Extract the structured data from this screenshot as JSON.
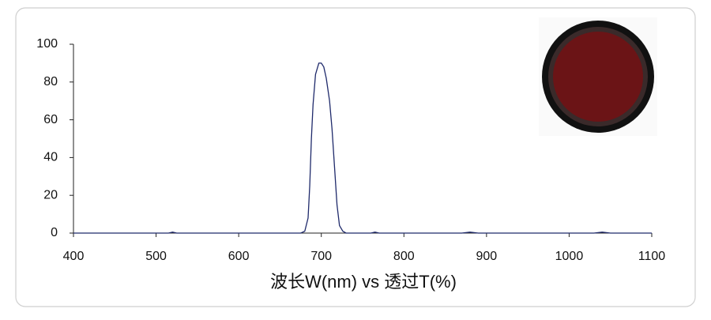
{
  "chart_data": {
    "type": "line",
    "x_label": "波长W(nm) vs 透过T(%)",
    "x": [
      400,
      515,
      520,
      525,
      675,
      680,
      684,
      686,
      688,
      690,
      693,
      697,
      700,
      703,
      706,
      710,
      713,
      716,
      719,
      722,
      726,
      730,
      760,
      765,
      770,
      870,
      880,
      890,
      1030,
      1040,
      1050,
      1100
    ],
    "values": [
      0,
      0,
      0.5,
      0,
      0,
      1,
      8,
      25,
      50,
      68,
      84,
      90,
      90,
      88,
      82,
      70,
      55,
      35,
      15,
      4,
      1,
      0,
      0,
      0.5,
      0,
      0,
      0.5,
      0,
      0,
      0.5,
      0,
      0
    ],
    "color": "#1f2a6b",
    "xlim": [
      400,
      1100
    ],
    "xticks": [
      400,
      500,
      600,
      700,
      800,
      900,
      1000,
      1100
    ],
    "ylim": [
      0,
      100
    ],
    "yticks": [
      0,
      20,
      40,
      60,
      80,
      100
    ],
    "grid": false
  }
}
